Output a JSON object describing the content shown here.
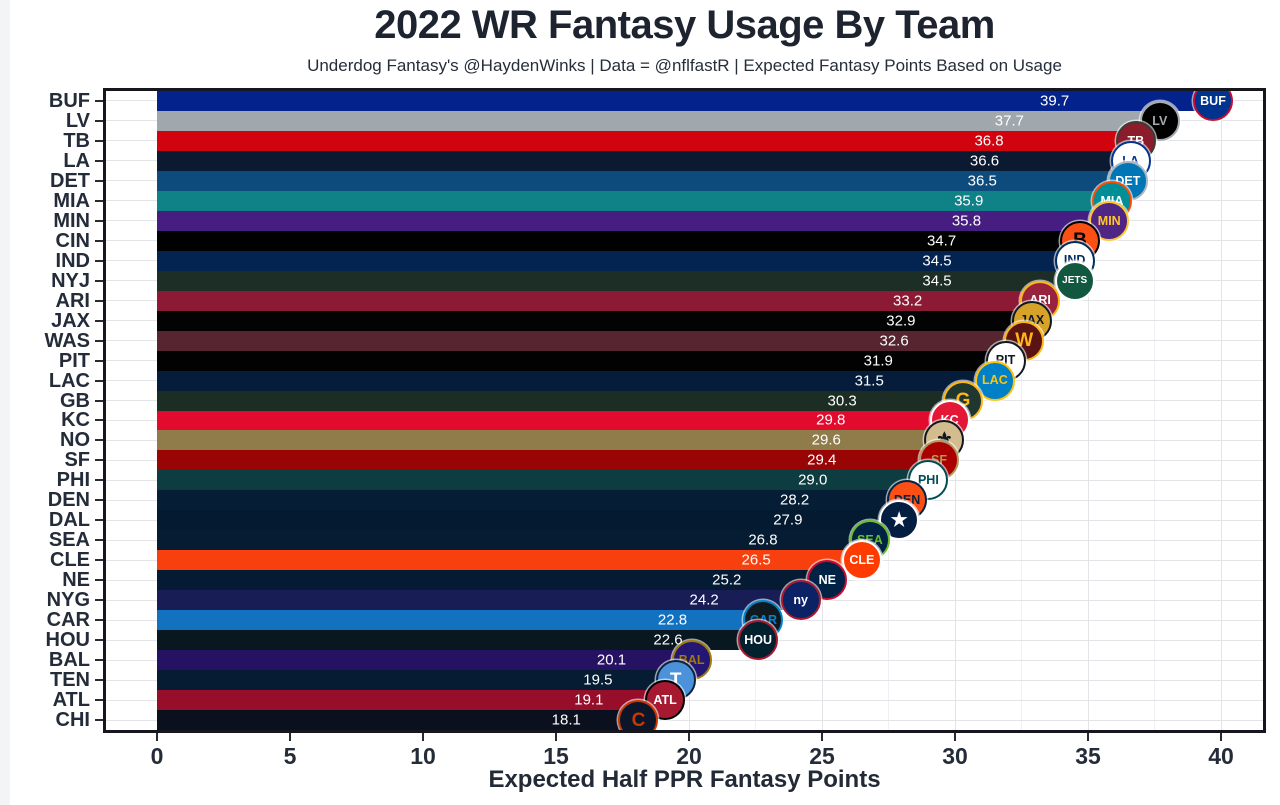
{
  "title": "2022 WR Fantasy Usage By Team",
  "subtitle": "Underdog Fantasy's @HaydenWinks | Data = @nflfastR | Expected Fantasy Points Based on Usage",
  "chart_data": {
    "type": "bar",
    "orientation": "horizontal",
    "title": "2022 WR Fantasy Usage By Team",
    "subtitle": "Underdog Fantasy's @HaydenWinks | Data = @nflfastR | Expected Fantasy Points Based on Usage",
    "xlabel": "Expected Half PPR Fantasy Points",
    "ylabel": "",
    "xlim": [
      -1.9,
      41.7
    ],
    "x_ticks": [
      0,
      5,
      10,
      15,
      20,
      25,
      30,
      35,
      40
    ],
    "grid": true,
    "legend": false,
    "value_label_color": "#ffffff",
    "panel_border_color": "#16161e",
    "grid_color": "#e3e3e8",
    "categories": [
      "BUF",
      "LV",
      "TB",
      "LA",
      "DET",
      "MIA",
      "MIN",
      "CIN",
      "IND",
      "NYJ",
      "ARI",
      "JAX",
      "WAS",
      "PIT",
      "LAC",
      "GB",
      "KC",
      "NO",
      "SF",
      "PHI",
      "DEN",
      "DAL",
      "SEA",
      "CLE",
      "NE",
      "NYG",
      "CAR",
      "HOU",
      "BAL",
      "TEN",
      "ATL",
      "CHI"
    ],
    "values": [
      39.7,
      37.7,
      36.8,
      36.6,
      36.5,
      35.9,
      35.8,
      34.7,
      34.5,
      34.5,
      33.2,
      32.9,
      32.6,
      31.9,
      31.5,
      30.3,
      29.8,
      29.6,
      29.4,
      29.0,
      28.2,
      27.9,
      26.8,
      26.5,
      25.2,
      24.2,
      22.8,
      22.6,
      20.1,
      19.5,
      19.1,
      18.1
    ],
    "teams": [
      {
        "abbr": "BUF",
        "value": 39.7,
        "label": "39.7",
        "color": "#04228c",
        "logo": {
          "bg": "#00338d",
          "ring": "#c60c30",
          "fg": "#ffffff",
          "text": "BUF"
        }
      },
      {
        "abbr": "LV",
        "value": 37.7,
        "label": "37.7",
        "color": "#a0a7ad",
        "logo": {
          "bg": "#000000",
          "ring": "#a5acaf",
          "fg": "#a5acaf",
          "text": "LV"
        }
      },
      {
        "abbr": "TB",
        "value": 36.8,
        "label": "36.8",
        "color": "#d0030e",
        "logo": {
          "bg": "#8a1c2c",
          "ring": "#3e3a35",
          "fg": "#ffffff",
          "text": "TB"
        }
      },
      {
        "abbr": "LA",
        "value": 36.6,
        "label": "36.6",
        "color": "#0c1a31",
        "logo": {
          "bg": "#ffffff",
          "ring": "#003594",
          "fg": "#003594",
          "text": "LA"
        }
      },
      {
        "abbr": "DET",
        "value": 36.5,
        "label": "36.5",
        "color": "#0d4b7d",
        "logo": {
          "bg": "#0076b6",
          "ring": "#b0b7bc",
          "fg": "#ffffff",
          "text": "DET"
        }
      },
      {
        "abbr": "MIA",
        "value": 35.9,
        "label": "35.9",
        "color": "#0f8287",
        "logo": {
          "bg": "#008e97",
          "ring": "#fc4c02",
          "fg": "#ffffff",
          "text": "MIA"
        }
      },
      {
        "abbr": "MIN",
        "value": 35.8,
        "label": "35.8",
        "color": "#461d80",
        "logo": {
          "bg": "#4f2683",
          "ring": "#ffc62f",
          "fg": "#ffc62f",
          "text": "MIN"
        }
      },
      {
        "abbr": "CIN",
        "value": 34.7,
        "label": "34.7",
        "color": "#010101",
        "logo": {
          "bg": "#fb4f14",
          "ring": "#000000",
          "fg": "#000000",
          "text": "B"
        }
      },
      {
        "abbr": "IND",
        "value": 34.5,
        "label": "34.5",
        "color": "#032451",
        "logo": {
          "bg": "#ffffff",
          "ring": "#002c5f",
          "fg": "#002c5f",
          "text": "IND"
        }
      },
      {
        "abbr": "NYJ",
        "value": 34.5,
        "label": "34.5",
        "color": "#1c2e25",
        "logo": {
          "bg": "#125740",
          "ring": "#ffffff",
          "fg": "#ffffff",
          "text": "JETS"
        }
      },
      {
        "abbr": "ARI",
        "value": 33.2,
        "label": "33.2",
        "color": "#8c1a34",
        "logo": {
          "bg": "#97233f",
          "ring": "#ffb612",
          "fg": "#ffffff",
          "text": "ARI"
        }
      },
      {
        "abbr": "JAX",
        "value": 32.9,
        "label": "32.9",
        "color": "#030303",
        "logo": {
          "bg": "#d7a22a",
          "ring": "#101820",
          "fg": "#101820",
          "text": "JAX"
        }
      },
      {
        "abbr": "WAS",
        "value": 32.6,
        "label": "32.6",
        "color": "#56252f",
        "logo": {
          "bg": "#5a1414",
          "ring": "#ffb612",
          "fg": "#ffb612",
          "text": "W"
        }
      },
      {
        "abbr": "PIT",
        "value": 31.9,
        "label": "31.9",
        "color": "#020202",
        "logo": {
          "bg": "#ffffff",
          "ring": "#101820",
          "fg": "#101820",
          "text": "PIT"
        }
      },
      {
        "abbr": "LAC",
        "value": 31.5,
        "label": "31.5",
        "color": "#051d3a",
        "logo": {
          "bg": "#0080c6",
          "ring": "#ffc20e",
          "fg": "#ffc20e",
          "text": "LAC"
        }
      },
      {
        "abbr": "GB",
        "value": 30.3,
        "label": "30.3",
        "color": "#1c2d24",
        "logo": {
          "bg": "#203731",
          "ring": "#ffb612",
          "fg": "#ffb612",
          "text": "G"
        }
      },
      {
        "abbr": "KC",
        "value": 29.8,
        "label": "29.8",
        "color": "#e30b2d",
        "logo": {
          "bg": "#e31837",
          "ring": "#ffffff",
          "fg": "#ffffff",
          "text": "KC"
        }
      },
      {
        "abbr": "NO",
        "value": 29.6,
        "label": "29.6",
        "color": "#8f7c4a",
        "logo": {
          "bg": "#d3bc8d",
          "ring": "#101820",
          "fg": "#101820",
          "text": "⚜"
        }
      },
      {
        "abbr": "SF",
        "value": 29.4,
        "label": "29.4",
        "color": "#990404",
        "logo": {
          "bg": "#aa0000",
          "ring": "#b3995d",
          "fg": "#b3995d",
          "text": "SF"
        }
      },
      {
        "abbr": "PHI",
        "value": 29.0,
        "label": "29.0",
        "color": "#0d3d41",
        "logo": {
          "bg": "#ffffff",
          "ring": "#004c54",
          "fg": "#004c54",
          "text": "PHI"
        }
      },
      {
        "abbr": "DEN",
        "value": 28.2,
        "label": "28.2",
        "color": "#051d35",
        "logo": {
          "bg": "#fb4f14",
          "ring": "#002244",
          "fg": "#002244",
          "text": "DEN"
        }
      },
      {
        "abbr": "DAL",
        "value": 27.9,
        "label": "27.9",
        "color": "#041a30",
        "logo": {
          "bg": "#041e42",
          "ring": "#ffffff",
          "fg": "#ffffff",
          "text": "★"
        }
      },
      {
        "abbr": "SEA",
        "value": 26.8,
        "label": "26.8",
        "color": "#051c33",
        "logo": {
          "bg": "#002244",
          "ring": "#69be28",
          "fg": "#69be28",
          "text": "SEA"
        }
      },
      {
        "abbr": "CLE",
        "value": 26.5,
        "label": "26.5",
        "color": "#f8400f",
        "logo": {
          "bg": "#ff3c00",
          "ring": "#ffffff",
          "fg": "#ffffff",
          "text": "CLE"
        }
      },
      {
        "abbr": "NE",
        "value": 25.2,
        "label": "25.2",
        "color": "#051a33",
        "logo": {
          "bg": "#002244",
          "ring": "#c60c30",
          "fg": "#ffffff",
          "text": "NE"
        }
      },
      {
        "abbr": "NYG",
        "value": 24.2,
        "label": "24.2",
        "color": "#181d56",
        "logo": {
          "bg": "#0b2265",
          "ring": "#a71930",
          "fg": "#ffffff",
          "text": "ny"
        }
      },
      {
        "abbr": "CAR",
        "value": 22.8,
        "label": "22.8",
        "color": "#1372c0",
        "logo": {
          "bg": "#101820",
          "ring": "#0085ca",
          "fg": "#0085ca",
          "text": "CAR"
        }
      },
      {
        "abbr": "HOU",
        "value": 22.6,
        "label": "22.6",
        "color": "#081720",
        "logo": {
          "bg": "#03202f",
          "ring": "#a71930",
          "fg": "#ffffff",
          "text": "HOU"
        }
      },
      {
        "abbr": "BAL",
        "value": 20.1,
        "label": "20.1",
        "color": "#261263",
        "logo": {
          "bg": "#241773",
          "ring": "#9e7c0c",
          "fg": "#9e7c0c",
          "text": "BAL"
        }
      },
      {
        "abbr": "TEN",
        "value": 19.5,
        "label": "19.5",
        "color": "#051c33",
        "logo": {
          "bg": "#4b92db",
          "ring": "#0c2340",
          "fg": "#ffffff",
          "text": "T"
        }
      },
      {
        "abbr": "ATL",
        "value": 19.1,
        "label": "19.1",
        "color": "#960e2a",
        "logo": {
          "bg": "#a71930",
          "ring": "#000000",
          "fg": "#ffffff",
          "text": "ATL"
        }
      },
      {
        "abbr": "CHI",
        "value": 18.1,
        "label": "18.1",
        "color": "#0b101f",
        "logo": {
          "bg": "#0b162a",
          "ring": "#c83803",
          "fg": "#c83803",
          "text": "C"
        }
      }
    ]
  }
}
